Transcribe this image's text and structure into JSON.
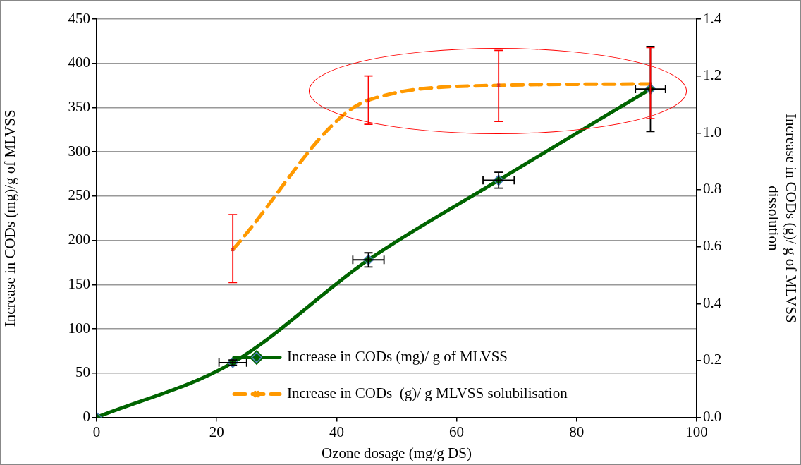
{
  "chart_data": {
    "type": "line",
    "xlabel": "Ozone dosage (mg/g DS)",
    "ylabel": "Increase in CODs (mg)/g of MLVSS",
    "y2label": "Increase in CODs (g)/ g of MLVSS dissolution",
    "xlim": [
      0,
      100
    ],
    "xticks": [
      0,
      20,
      40,
      60,
      80,
      100
    ],
    "ylim": [
      0,
      450
    ],
    "yticks": [
      0,
      50,
      100,
      150,
      200,
      250,
      300,
      350,
      400,
      450
    ],
    "y2lim": [
      0,
      1.4
    ],
    "y2ticks": [
      {
        "value": 0,
        "label": "0.0"
      },
      0.2,
      0.4,
      0.6,
      0.8,
      {
        "value": 1,
        "label": "1.0"
      },
      1.2,
      1.4
    ],
    "grid": "y",
    "legend": "bottom",
    "series": [
      {
        "name": "Increase in CODs (mg)/ g of MLVSS",
        "color": "#006400",
        "marker": "diamond",
        "line_style": "solid",
        "x": [
          0,
          22.7,
          45.3,
          67,
          92.3
        ],
        "values": [
          0,
          62,
          178,
          268,
          371
        ],
        "errors": [
          null,
          3,
          8,
          9,
          48
        ],
        "xerrors": [
          null,
          2.3,
          2.6,
          2.6,
          2.5
        ]
      },
      {
        "name": "Increase in CODs  (g)/ g MLVSS solubilisation",
        "color": "#ff9900",
        "marker": "cross",
        "line_style": "dashed",
        "axis": "y2",
        "x": [
          22.7,
          45.3,
          67,
          92.3
        ],
        "values": [
          0.59,
          1.115,
          1.167,
          1.172
        ],
        "errors": [
          [
            0.474,
            0.713
          ],
          [
            1.03,
            1.2
          ],
          [
            1.04,
            1.29
          ],
          [
            1.05,
            1.3
          ]
        ]
      }
    ]
  }
}
